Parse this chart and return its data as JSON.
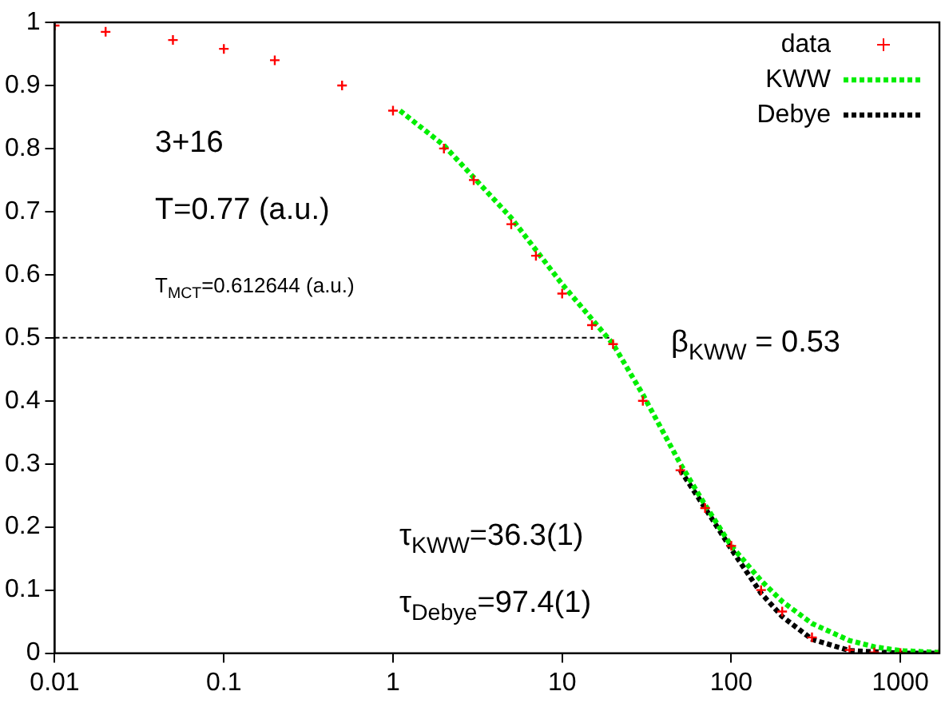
{
  "chart_data": {
    "type": "line",
    "log": "x",
    "xlim": [
      0.01,
      1700
    ],
    "ylim": [
      0,
      1
    ],
    "xticks": [
      0.01,
      0.1,
      1,
      10,
      100,
      1000
    ],
    "yticks": [
      0,
      0.1,
      0.2,
      0.3,
      0.4,
      0.5,
      0.6,
      0.7,
      0.8,
      0.9,
      1
    ],
    "grid": false,
    "legend": "top right",
    "series": [
      {
        "name": "data",
        "type": "scatter",
        "marker": "cross",
        "color": "#ff0000",
        "x": [
          0.01,
          0.02,
          0.05,
          0.1,
          0.2,
          0.5,
          1,
          2,
          3,
          5,
          7,
          10,
          15,
          20,
          30,
          50,
          70,
          100,
          150,
          200,
          300,
          500,
          700,
          1000,
          1700
        ],
        "values": [
          0.995,
          0.985,
          0.972,
          0.958,
          0.94,
          0.9,
          0.86,
          0.8,
          0.75,
          0.68,
          0.63,
          0.57,
          0.52,
          0.49,
          0.4,
          0.29,
          0.23,
          0.17,
          0.1,
          0.066,
          0.025,
          0.005,
          0.001,
          0,
          0
        ]
      },
      {
        "name": "KWW",
        "type": "line",
        "line_style": "dotted",
        "color": "#00ee00",
        "x": [
          1.1,
          2,
          5,
          10,
          20,
          30,
          50,
          70,
          100,
          150,
          200,
          300,
          500,
          700,
          1000,
          1700
        ],
        "values": [
          0.86,
          0.805,
          0.69,
          0.585,
          0.49,
          0.41,
          0.3,
          0.235,
          0.17,
          0.115,
          0.082,
          0.047,
          0.02,
          0.01,
          0.004,
          0.001
        ]
      },
      {
        "name": "Debye",
        "type": "line",
        "line_style": "dotted",
        "color": "#000000",
        "x": [
          50,
          70,
          100,
          150,
          200,
          300,
          500,
          1000,
          1700
        ],
        "values": [
          0.29,
          0.23,
          0.165,
          0.095,
          0.058,
          0.022,
          0.004,
          0,
          0
        ]
      },
      {
        "type": "line",
        "line_style": "dotted",
        "color": "#000000",
        "x": [
          0.01,
          19
        ],
        "values": [
          0.5,
          0.5
        ]
      }
    ],
    "annotations": [
      "3+16",
      "T=0.77 (a.u.)",
      "T$_{MCT}$=0.612644 (a.u.)",
      "β$_{KWW}$ = 0.53",
      "τ$_{KWW}$=36.3(1)",
      "τ$_{Debye}$=97.4(1)"
    ]
  }
}
